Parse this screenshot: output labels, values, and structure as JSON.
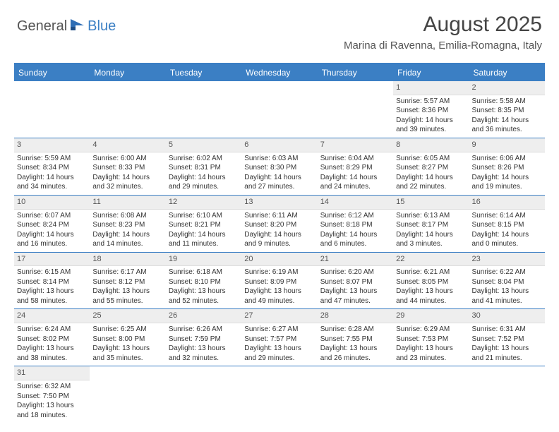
{
  "logo": {
    "part1": "General",
    "part2": "Blue"
  },
  "title": "August 2025",
  "location": "Marina di Ravenna, Emilia-Romagna, Italy",
  "colors": {
    "brand": "#3b7fc4",
    "header_text": "#444",
    "cell_header_bg": "#eeeeee",
    "background": "#ffffff"
  },
  "weekdays": [
    "Sunday",
    "Monday",
    "Tuesday",
    "Wednesday",
    "Thursday",
    "Friday",
    "Saturday"
  ],
  "weeks": [
    [
      null,
      null,
      null,
      null,
      null,
      {
        "n": "1",
        "sunrise": "Sunrise: 5:57 AM",
        "sunset": "Sunset: 8:36 PM",
        "daylight": "Daylight: 14 hours and 39 minutes."
      },
      {
        "n": "2",
        "sunrise": "Sunrise: 5:58 AM",
        "sunset": "Sunset: 8:35 PM",
        "daylight": "Daylight: 14 hours and 36 minutes."
      }
    ],
    [
      {
        "n": "3",
        "sunrise": "Sunrise: 5:59 AM",
        "sunset": "Sunset: 8:34 PM",
        "daylight": "Daylight: 14 hours and 34 minutes."
      },
      {
        "n": "4",
        "sunrise": "Sunrise: 6:00 AM",
        "sunset": "Sunset: 8:33 PM",
        "daylight": "Daylight: 14 hours and 32 minutes."
      },
      {
        "n": "5",
        "sunrise": "Sunrise: 6:02 AM",
        "sunset": "Sunset: 8:31 PM",
        "daylight": "Daylight: 14 hours and 29 minutes."
      },
      {
        "n": "6",
        "sunrise": "Sunrise: 6:03 AM",
        "sunset": "Sunset: 8:30 PM",
        "daylight": "Daylight: 14 hours and 27 minutes."
      },
      {
        "n": "7",
        "sunrise": "Sunrise: 6:04 AM",
        "sunset": "Sunset: 8:29 PM",
        "daylight": "Daylight: 14 hours and 24 minutes."
      },
      {
        "n": "8",
        "sunrise": "Sunrise: 6:05 AM",
        "sunset": "Sunset: 8:27 PM",
        "daylight": "Daylight: 14 hours and 22 minutes."
      },
      {
        "n": "9",
        "sunrise": "Sunrise: 6:06 AM",
        "sunset": "Sunset: 8:26 PM",
        "daylight": "Daylight: 14 hours and 19 minutes."
      }
    ],
    [
      {
        "n": "10",
        "sunrise": "Sunrise: 6:07 AM",
        "sunset": "Sunset: 8:24 PM",
        "daylight": "Daylight: 14 hours and 16 minutes."
      },
      {
        "n": "11",
        "sunrise": "Sunrise: 6:08 AM",
        "sunset": "Sunset: 8:23 PM",
        "daylight": "Daylight: 14 hours and 14 minutes."
      },
      {
        "n": "12",
        "sunrise": "Sunrise: 6:10 AM",
        "sunset": "Sunset: 8:21 PM",
        "daylight": "Daylight: 14 hours and 11 minutes."
      },
      {
        "n": "13",
        "sunrise": "Sunrise: 6:11 AM",
        "sunset": "Sunset: 8:20 PM",
        "daylight": "Daylight: 14 hours and 9 minutes."
      },
      {
        "n": "14",
        "sunrise": "Sunrise: 6:12 AM",
        "sunset": "Sunset: 8:18 PM",
        "daylight": "Daylight: 14 hours and 6 minutes."
      },
      {
        "n": "15",
        "sunrise": "Sunrise: 6:13 AM",
        "sunset": "Sunset: 8:17 PM",
        "daylight": "Daylight: 14 hours and 3 minutes."
      },
      {
        "n": "16",
        "sunrise": "Sunrise: 6:14 AM",
        "sunset": "Sunset: 8:15 PM",
        "daylight": "Daylight: 14 hours and 0 minutes."
      }
    ],
    [
      {
        "n": "17",
        "sunrise": "Sunrise: 6:15 AM",
        "sunset": "Sunset: 8:14 PM",
        "daylight": "Daylight: 13 hours and 58 minutes."
      },
      {
        "n": "18",
        "sunrise": "Sunrise: 6:17 AM",
        "sunset": "Sunset: 8:12 PM",
        "daylight": "Daylight: 13 hours and 55 minutes."
      },
      {
        "n": "19",
        "sunrise": "Sunrise: 6:18 AM",
        "sunset": "Sunset: 8:10 PM",
        "daylight": "Daylight: 13 hours and 52 minutes."
      },
      {
        "n": "20",
        "sunrise": "Sunrise: 6:19 AM",
        "sunset": "Sunset: 8:09 PM",
        "daylight": "Daylight: 13 hours and 49 minutes."
      },
      {
        "n": "21",
        "sunrise": "Sunrise: 6:20 AM",
        "sunset": "Sunset: 8:07 PM",
        "daylight": "Daylight: 13 hours and 47 minutes."
      },
      {
        "n": "22",
        "sunrise": "Sunrise: 6:21 AM",
        "sunset": "Sunset: 8:05 PM",
        "daylight": "Daylight: 13 hours and 44 minutes."
      },
      {
        "n": "23",
        "sunrise": "Sunrise: 6:22 AM",
        "sunset": "Sunset: 8:04 PM",
        "daylight": "Daylight: 13 hours and 41 minutes."
      }
    ],
    [
      {
        "n": "24",
        "sunrise": "Sunrise: 6:24 AM",
        "sunset": "Sunset: 8:02 PM",
        "daylight": "Daylight: 13 hours and 38 minutes."
      },
      {
        "n": "25",
        "sunrise": "Sunrise: 6:25 AM",
        "sunset": "Sunset: 8:00 PM",
        "daylight": "Daylight: 13 hours and 35 minutes."
      },
      {
        "n": "26",
        "sunrise": "Sunrise: 6:26 AM",
        "sunset": "Sunset: 7:59 PM",
        "daylight": "Daylight: 13 hours and 32 minutes."
      },
      {
        "n": "27",
        "sunrise": "Sunrise: 6:27 AM",
        "sunset": "Sunset: 7:57 PM",
        "daylight": "Daylight: 13 hours and 29 minutes."
      },
      {
        "n": "28",
        "sunrise": "Sunrise: 6:28 AM",
        "sunset": "Sunset: 7:55 PM",
        "daylight": "Daylight: 13 hours and 26 minutes."
      },
      {
        "n": "29",
        "sunrise": "Sunrise: 6:29 AM",
        "sunset": "Sunset: 7:53 PM",
        "daylight": "Daylight: 13 hours and 23 minutes."
      },
      {
        "n": "30",
        "sunrise": "Sunrise: 6:31 AM",
        "sunset": "Sunset: 7:52 PM",
        "daylight": "Daylight: 13 hours and 21 minutes."
      }
    ],
    [
      {
        "n": "31",
        "sunrise": "Sunrise: 6:32 AM",
        "sunset": "Sunset: 7:50 PM",
        "daylight": "Daylight: 13 hours and 18 minutes."
      },
      null,
      null,
      null,
      null,
      null,
      null
    ]
  ]
}
